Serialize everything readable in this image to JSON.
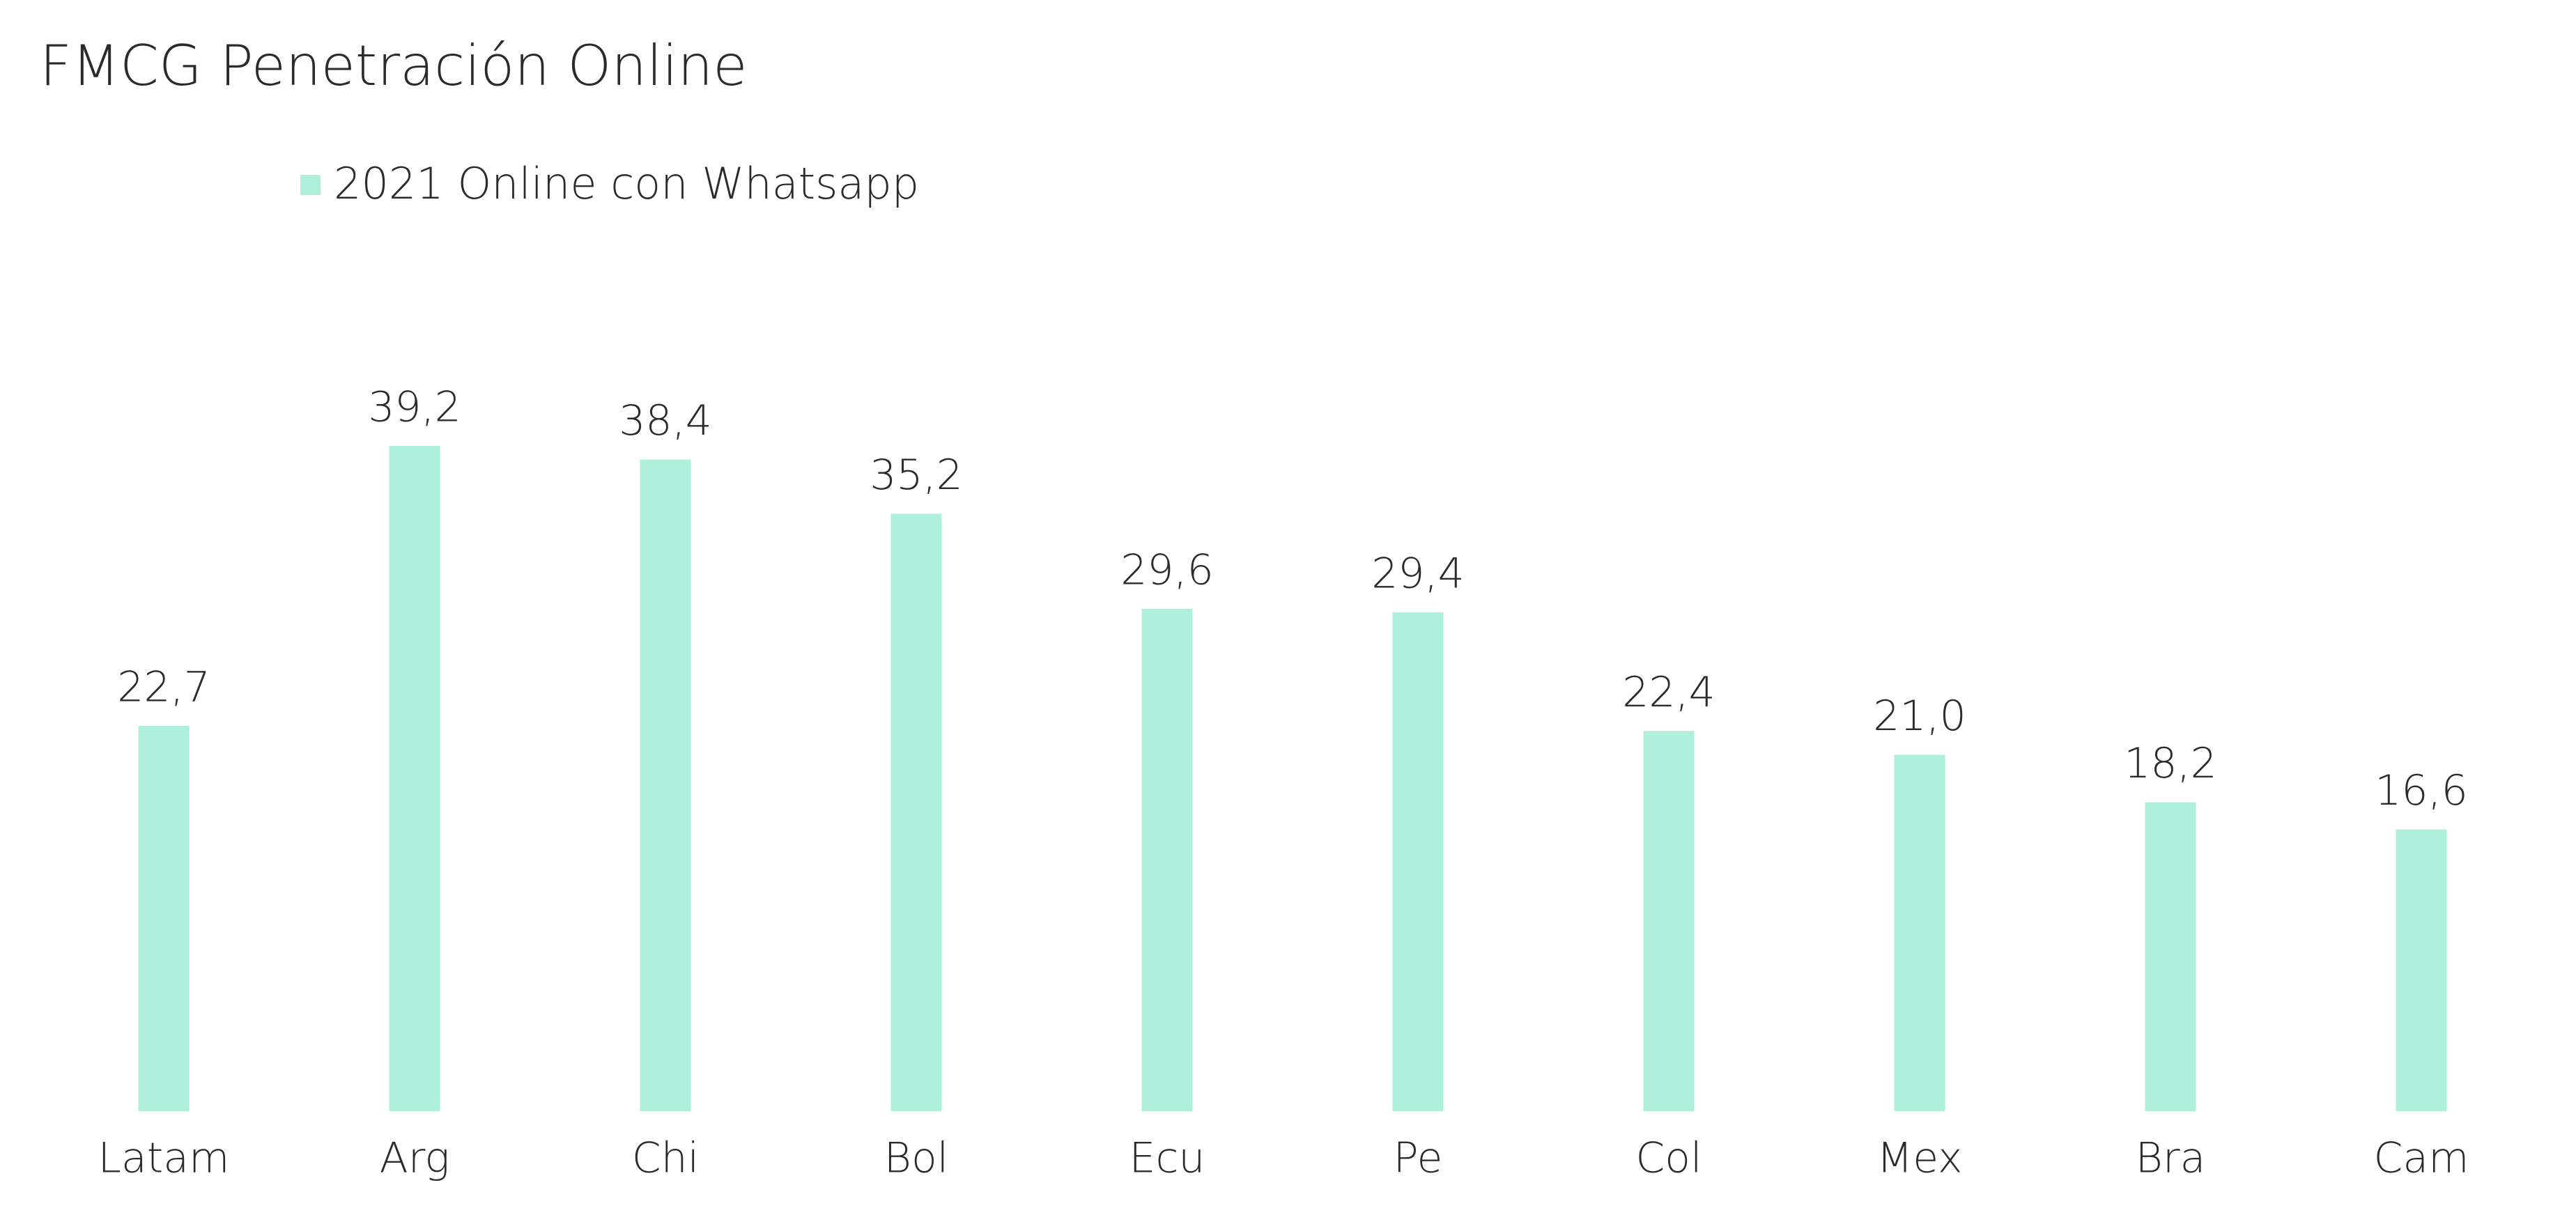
{
  "chart_data": {
    "type": "bar",
    "title": "FMCG Penetración Online",
    "categories": [
      "Latam",
      "Arg",
      "Chi",
      "Bol",
      "Ecu",
      "Pe",
      "Col",
      "Mex",
      "Bra",
      "Cam"
    ],
    "series": [
      {
        "name": "2021 Online con Whatsapp",
        "color": "#aff0dc",
        "values": [
          22.7,
          39.2,
          38.4,
          35.2,
          29.6,
          29.4,
          22.4,
          21.0,
          18.2,
          16.6
        ],
        "value_labels": [
          "22,7",
          "39,2",
          "38,4",
          "35,2",
          "29,6",
          "29,4",
          "22,4",
          "21,0",
          "18,2",
          "16,6"
        ]
      }
    ],
    "legend": "top-left"
  }
}
